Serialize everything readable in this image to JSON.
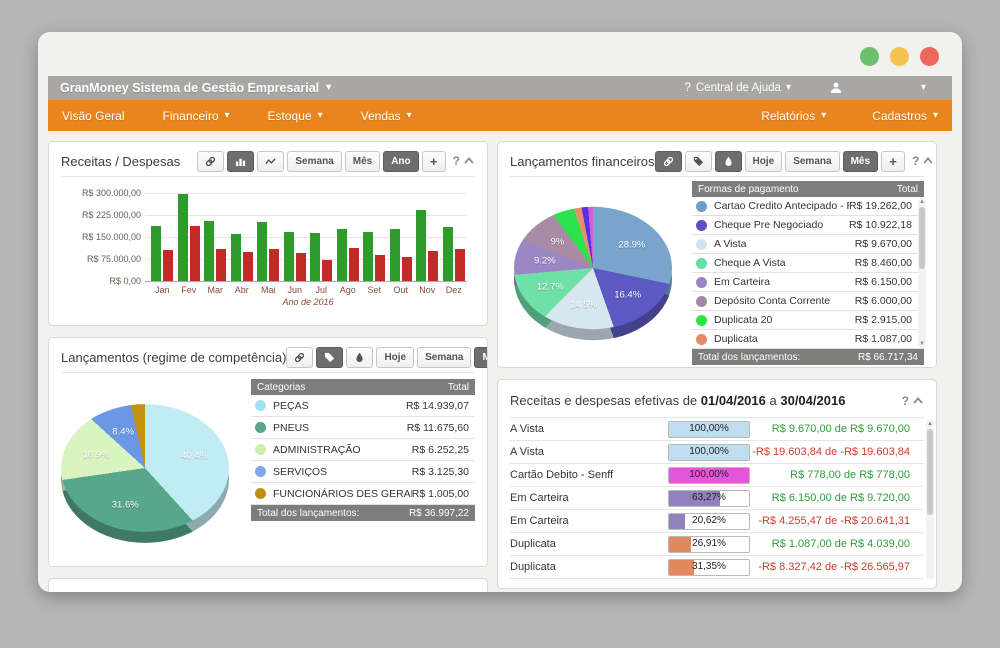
{
  "window": {
    "traffic_lights": [
      {
        "name": "green",
        "color": "#6cc070"
      },
      {
        "name": "yellow",
        "color": "#f4c24f"
      },
      {
        "name": "red",
        "color": "#ec685c"
      }
    ]
  },
  "titlebar": {
    "title": "GranMoney Sistema de Gestão Empresarial",
    "help_icon": "?",
    "help_label": "Central de Ajuda"
  },
  "navbar": {
    "left": [
      {
        "label": "Visão Geral",
        "caret": false
      },
      {
        "label": "Financeiro",
        "caret": true
      },
      {
        "label": "Estoque",
        "caret": true
      },
      {
        "label": "Vendas",
        "caret": true
      }
    ],
    "right": [
      {
        "label": "Relatórios",
        "caret": true
      },
      {
        "label": "Cadastros",
        "caret": true
      }
    ]
  },
  "colors": {
    "positive": "#2e9e38",
    "negative": "#cf3a30",
    "nav_orange": "#e8851c",
    "titlebar_gray": "#a8a7a5"
  },
  "panels": {
    "p1": {
      "title": "Receitas / Despesas",
      "help": "?",
      "toolbar": [
        {
          "icon": "link",
          "active": false
        },
        {
          "icon": "bar-chart",
          "active": true
        },
        {
          "icon": "line-chart",
          "active": false
        },
        {
          "label": "Semana",
          "active": false
        },
        {
          "label": "Mês",
          "active": false
        },
        {
          "label": "Ano",
          "active": true
        },
        {
          "label": "+",
          "active": false
        }
      ],
      "chart": {
        "type": "bar",
        "categories": [
          "Jan",
          "Fev",
          "Mar",
          "Abr",
          "Mai",
          "Jun",
          "Jul",
          "Ago",
          "Set",
          "Out",
          "Nov",
          "Dez"
        ],
        "series": [
          {
            "name": "Receitas",
            "color": "#2f9b2b",
            "values": [
              187000,
              297000,
              205000,
              159000,
              200000,
              168000,
              164000,
              176000,
              167000,
              176000,
              243000,
              185000
            ]
          },
          {
            "name": "Despesas",
            "color": "#c22a27",
            "values": [
              105000,
              187000,
              108000,
              100000,
              108000,
              94000,
              73000,
              114000,
              87000,
              82000,
              101000,
              108000
            ]
          }
        ],
        "y_ticks": [
          {
            "v": 0,
            "label": "R$ 0,00"
          },
          {
            "v": 75000,
            "label": "R$ 75.000,00"
          },
          {
            "v": 150000,
            "label": "R$ 150.000,00"
          },
          {
            "v": 225000,
            "label": "R$ 225.000,00"
          },
          {
            "v": 300000,
            "label": "R$ 300.000,00"
          }
        ],
        "ylim": [
          0,
          300000
        ],
        "xlabel": "Ano de 2016"
      }
    },
    "p2": {
      "title": "Lançamentos financeiros",
      "help": "?",
      "toolbar": [
        {
          "icon": "link",
          "active": true
        },
        {
          "icon": "tag",
          "active": false
        },
        {
          "icon": "droplet",
          "active": true
        },
        {
          "label": "Hoje",
          "active": false
        },
        {
          "label": "Semana",
          "active": false
        },
        {
          "label": "Mês",
          "active": true
        },
        {
          "label": "+",
          "active": false
        }
      ],
      "chart": {
        "type": "pie",
        "slices": [
          {
            "label": "28.9%",
            "value": 28.9,
            "name": "Cartao Credito Antecipado - Re",
            "color": "#79a5cc"
          },
          {
            "label": "16.4%",
            "value": 16.4,
            "name": "Cheque Pre Negociado",
            "color": "#5d59c3"
          },
          {
            "label": "14.5%",
            "value": 14.5,
            "name": "A Vista",
            "color": "#d7e7f0"
          },
          {
            "label": "12.7%",
            "value": 12.7,
            "name": "Cheque A Vista",
            "color": "#6fe0a8"
          },
          {
            "label": "9.2%",
            "value": 9.2,
            "name": "Em Carteira",
            "color": "#9c87c5"
          },
          {
            "label": "9%",
            "value": 9.0,
            "name": "Depósito Conta Corrente",
            "color": "#a98ba5"
          },
          {
            "label": "",
            "value": 4.4,
            "name": "Duplicata 20",
            "color": "#2ae24b"
          },
          {
            "label": "",
            "value": 1.6,
            "name": "Duplicata",
            "color": "#e2926c"
          },
          {
            "label": "",
            "value": 1.3,
            "name": "",
            "color": "#5633e0"
          },
          {
            "label": "",
            "value": 1.0,
            "name": "",
            "color": "#cf5ee0"
          }
        ]
      },
      "table": {
        "headers": [
          "Formas de pagamento",
          "Total"
        ],
        "rows": [
          {
            "name": "Cartao Credito Antecipado - Re",
            "value": "R$ 19.262,00",
            "color": "#6b9dc8"
          },
          {
            "name": "Cheque Pre Negociado",
            "value": "R$ 10.922,18",
            "color": "#5b51c5"
          },
          {
            "name": "A Vista",
            "value": "R$ 9.670,00",
            "color": "#cfe4f2"
          },
          {
            "name": "Cheque A Vista",
            "value": "R$ 8.460,00",
            "color": "#63dfa6"
          },
          {
            "name": "Em Carteira",
            "value": "R$ 6.150,00",
            "color": "#9b84c4"
          },
          {
            "name": "Depósito Conta Corrente",
            "value": "R$ 6.000,00",
            "color": "#a387a3"
          },
          {
            "name": "Duplicata 20",
            "value": "R$ 2.915,00",
            "color": "#2ce645"
          },
          {
            "name": "Duplicata",
            "value": "R$ 1.087,00",
            "color": "#e58a66"
          }
        ],
        "footer_label": "Total dos lançamentos:",
        "footer_value": "R$ 66.717,34"
      }
    },
    "p3": {
      "title": "Lançamentos (regime de competência)",
      "help": "?",
      "toolbar": [
        {
          "icon": "link",
          "active": false
        },
        {
          "icon": "tag",
          "active": true
        },
        {
          "icon": "droplet",
          "active": false
        },
        {
          "label": "Hoje",
          "active": false
        },
        {
          "label": "Semana",
          "active": false
        },
        {
          "label": "Mês",
          "active": true
        },
        {
          "label": "+",
          "active": false
        }
      ],
      "chart": {
        "type": "pie",
        "slices": [
          {
            "label": "40.4%",
            "value": 40.4,
            "name": "PEÇAS",
            "color": "#c2ecf4"
          },
          {
            "label": "31.6%",
            "value": 31.6,
            "name": "PNEUS",
            "color": "#57a78c"
          },
          {
            "label": "16.9%",
            "value": 16.9,
            "name": "ADMINISTRAÇÃO",
            "color": "#d9f4c0"
          },
          {
            "label": "8.4%",
            "value": 8.4,
            "name": "SERVIÇOS",
            "color": "#6a98e6"
          },
          {
            "label": "",
            "value": 2.7,
            "name": "FUNCIONÁRIOS DES GERAL",
            "color": "#c3920e"
          }
        ]
      },
      "table": {
        "headers": [
          "Categorias",
          "Total"
        ],
        "rows": [
          {
            "name": "PEÇAS",
            "value": "R$ 14.939,07",
            "color": "#9fe3ee"
          },
          {
            "name": "PNEUS",
            "value": "R$ 11.675,60",
            "color": "#57a78c"
          },
          {
            "name": "ADMINISTRAÇÃO",
            "value": "R$ 6.252,25",
            "color": "#cdeeb0"
          },
          {
            "name": "SERVIÇOS",
            "value": "R$ 3.125,30",
            "color": "#7fa8ec"
          },
          {
            "name": "FUNCIONÁRIOS DES GERAL",
            "value": "R$ 1.005,00",
            "color": "#bf9010"
          }
        ],
        "footer_label": "Total dos lançamentos:",
        "footer_value": "R$ 36.997,22"
      }
    },
    "p4": {
      "title_prefix": "Receitas e despesas efetivas de",
      "date_from": "01/04/2016",
      "date_joiner": "a",
      "date_to": "30/04/2016",
      "help": "?",
      "rows": [
        {
          "name": "A Vista",
          "percent": "100,00%",
          "percent_value": 100,
          "bar_color": "#bfdff0",
          "amount": "R$ 9.670,00 de R$ 9.670,00",
          "direction": "positive"
        },
        {
          "name": "A Vista",
          "percent": "100,00%",
          "percent_value": 100,
          "bar_color": "#bfdff0",
          "amount": "-R$ 19.603,84 de -R$ 19.603,84",
          "direction": "negative"
        },
        {
          "name": "Cartão Debito - Senff",
          "percent": "100,00%",
          "percent_value": 100,
          "bar_color": "#e455dd",
          "amount": "R$ 778,00 de R$ 778,00",
          "direction": "positive"
        },
        {
          "name": "Em Carteira",
          "percent": "63,27%",
          "percent_value": 63.27,
          "bar_color": "#9181bd",
          "amount": "R$ 6.150,00 de R$ 9.720,00",
          "direction": "positive"
        },
        {
          "name": "Em Carteira",
          "percent": "20,62%",
          "percent_value": 20.62,
          "bar_color": "#9181bd",
          "amount": "-R$ 4.255,47 de -R$ 20.641,31",
          "direction": "negative"
        },
        {
          "name": "Duplicata",
          "percent": "26,91%",
          "percent_value": 26.91,
          "bar_color": "#e0885f",
          "amount": "R$ 1.087,00 de R$ 4.039,00",
          "direction": "positive"
        },
        {
          "name": "Duplicata",
          "percent": "31,35%",
          "percent_value": 31.35,
          "bar_color": "#e0885f",
          "amount": "-R$ 8.327,42 de -R$ 26.565,97",
          "direction": "negative"
        }
      ]
    }
  }
}
